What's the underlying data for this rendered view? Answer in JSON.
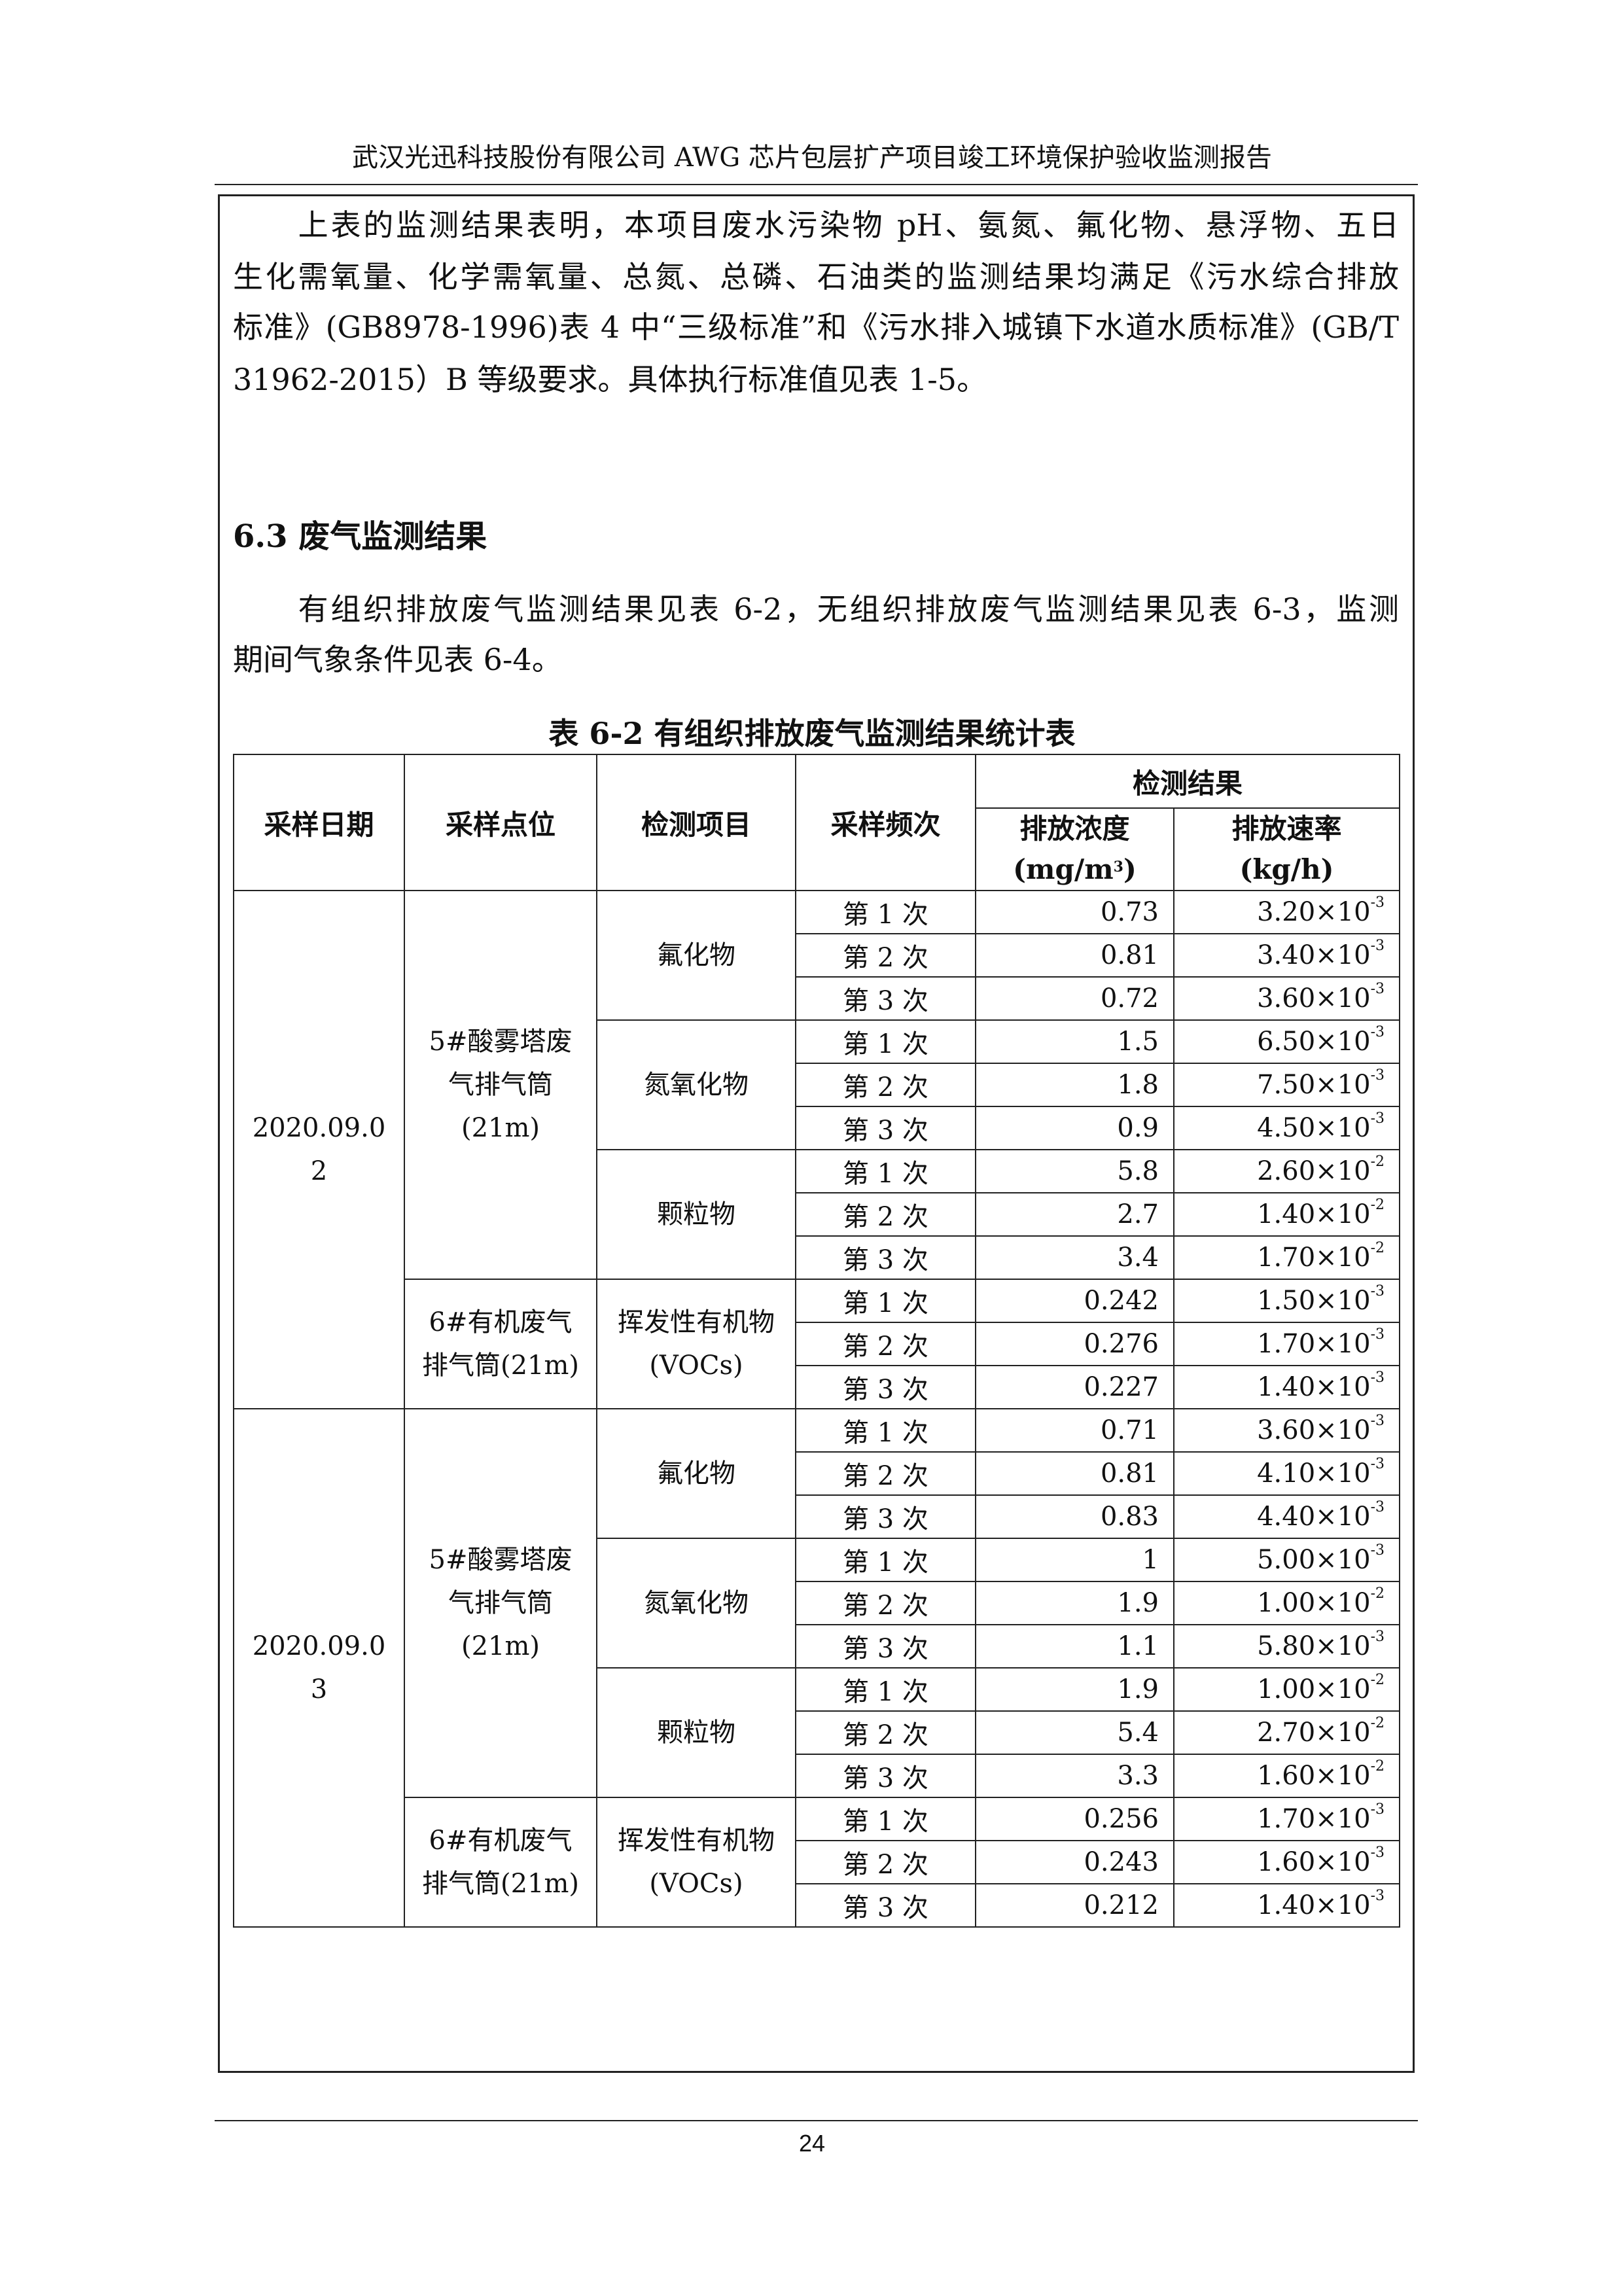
{
  "header": {
    "title": "武汉光迅科技股份有限公司 AWG 芯片包层扩产项目竣工环境保护验收监测报告"
  },
  "paragraph1": {
    "lines": [
      "　　上表的监测结果表明，本项目废水污染物 pH、氨氮、氟化物、悬浮物、五日",
      "生化需氧量、化学需氧量、总氮、总磷、石油类的监测结果均满足《污水综合排放",
      "标准》(GB8978-1996)表 4 中“三级标准”和《污水排入城镇下水道水质标准》(GB/T",
      "31962-2015）B 等级要求。具体执行标准值见表 1-5。"
    ]
  },
  "section": {
    "heading": "6.3 废气监测结果"
  },
  "paragraph2": {
    "lines": [
      "　　有组织排放废气监测结果见表 6-2，无组织排放废气监测结果见表 6-3，监测",
      "期间气象条件见表 6-4。"
    ]
  },
  "table": {
    "caption": "表 6-2 有组织排放废气监测结果统计表",
    "headers": {
      "date": "采样日期",
      "point": "采样点位",
      "item": "检测项目",
      "freq": "采样频次",
      "results": "检测结果",
      "conc": "排放浓度",
      "conc_unit": "(mg/m",
      "conc_unit_sup": "3",
      "conc_unit_end": ")",
      "rate": "排放速率",
      "rate_unit": "(kg/h)"
    },
    "groups": [
      {
        "date": "2020.09.02",
        "points": [
          {
            "name": "5#酸雾塔废气排气筒(21m)",
            "items": [
              {
                "name": "氟化物",
                "samples": [
                  {
                    "freq": "第 1 次",
                    "conc": "0.73",
                    "rate": "3.20×10",
                    "exp": "-3"
                  },
                  {
                    "freq": "第 2 次",
                    "conc": "0.81",
                    "rate": "3.40×10",
                    "exp": "-3"
                  },
                  {
                    "freq": "第 3 次",
                    "conc": "0.72",
                    "rate": "3.60×10",
                    "exp": "-3"
                  }
                ]
              },
              {
                "name": "氮氧化物",
                "samples": [
                  {
                    "freq": "第 1 次",
                    "conc": "1.5",
                    "rate": "6.50×10",
                    "exp": "-3"
                  },
                  {
                    "freq": "第 2 次",
                    "conc": "1.8",
                    "rate": "7.50×10",
                    "exp": "-3"
                  },
                  {
                    "freq": "第 3 次",
                    "conc": "0.9",
                    "rate": "4.50×10",
                    "exp": "-3"
                  }
                ]
              },
              {
                "name": "颗粒物",
                "samples": [
                  {
                    "freq": "第 1 次",
                    "conc": "5.8",
                    "rate": "2.60×10",
                    "exp": "-2"
                  },
                  {
                    "freq": "第 2 次",
                    "conc": "2.7",
                    "rate": "1.40×10",
                    "exp": "-2"
                  },
                  {
                    "freq": "第 3 次",
                    "conc": "3.4",
                    "rate": "1.70×10",
                    "exp": "-2"
                  }
                ]
              }
            ]
          },
          {
            "name": "6#有机废气排气筒(21m)",
            "items": [
              {
                "name": "挥发性有机物(VOCs)",
                "samples": [
                  {
                    "freq": "第 1 次",
                    "conc": "0.242",
                    "rate": "1.50×10",
                    "exp": "-3"
                  },
                  {
                    "freq": "第 2 次",
                    "conc": "0.276",
                    "rate": "1.70×10",
                    "exp": "-3"
                  },
                  {
                    "freq": "第 3 次",
                    "conc": "0.227",
                    "rate": "1.40×10",
                    "exp": "-3"
                  }
                ]
              }
            ]
          }
        ]
      },
      {
        "date": "2020.09.03",
        "points": [
          {
            "name": "5#酸雾塔废气排气筒(21m)",
            "items": [
              {
                "name": "氟化物",
                "samples": [
                  {
                    "freq": "第 1 次",
                    "conc": "0.71",
                    "rate": "3.60×10",
                    "exp": "-3"
                  },
                  {
                    "freq": "第 2 次",
                    "conc": "0.81",
                    "rate": "4.10×10",
                    "exp": "-3"
                  },
                  {
                    "freq": "第 3 次",
                    "conc": "0.83",
                    "rate": "4.40×10",
                    "exp": "-3"
                  }
                ]
              },
              {
                "name": "氮氧化物",
                "samples": [
                  {
                    "freq": "第 1 次",
                    "conc": "1",
                    "rate": "5.00×10",
                    "exp": "-3"
                  },
                  {
                    "freq": "第 2 次",
                    "conc": "1.9",
                    "rate": "1.00×10",
                    "exp": "-2"
                  },
                  {
                    "freq": "第 3 次",
                    "conc": "1.1",
                    "rate": "5.80×10",
                    "exp": "-3"
                  }
                ]
              },
              {
                "name": "颗粒物",
                "samples": [
                  {
                    "freq": "第 1 次",
                    "conc": "1.9",
                    "rate": "1.00×10",
                    "exp": "-2"
                  },
                  {
                    "freq": "第 2 次",
                    "conc": "5.4",
                    "rate": "2.70×10",
                    "exp": "-2"
                  },
                  {
                    "freq": "第 3 次",
                    "conc": "3.3",
                    "rate": "1.60×10",
                    "exp": "-2"
                  }
                ]
              }
            ]
          },
          {
            "name": "6#有机废气排气筒(21m)",
            "items": [
              {
                "name": "挥发性有机物(VOCs)",
                "samples": [
                  {
                    "freq": "第 1 次",
                    "conc": "0.256",
                    "rate": "1.70×10",
                    "exp": "-3"
                  },
                  {
                    "freq": "第 2 次",
                    "conc": "0.243",
                    "rate": "1.60×10",
                    "exp": "-3"
                  },
                  {
                    "freq": "第 3 次",
                    "conc": "0.212",
                    "rate": "1.40×10",
                    "exp": "-3"
                  }
                ]
              }
            ]
          }
        ]
      }
    ]
  },
  "footer": {
    "page_number": "24"
  }
}
